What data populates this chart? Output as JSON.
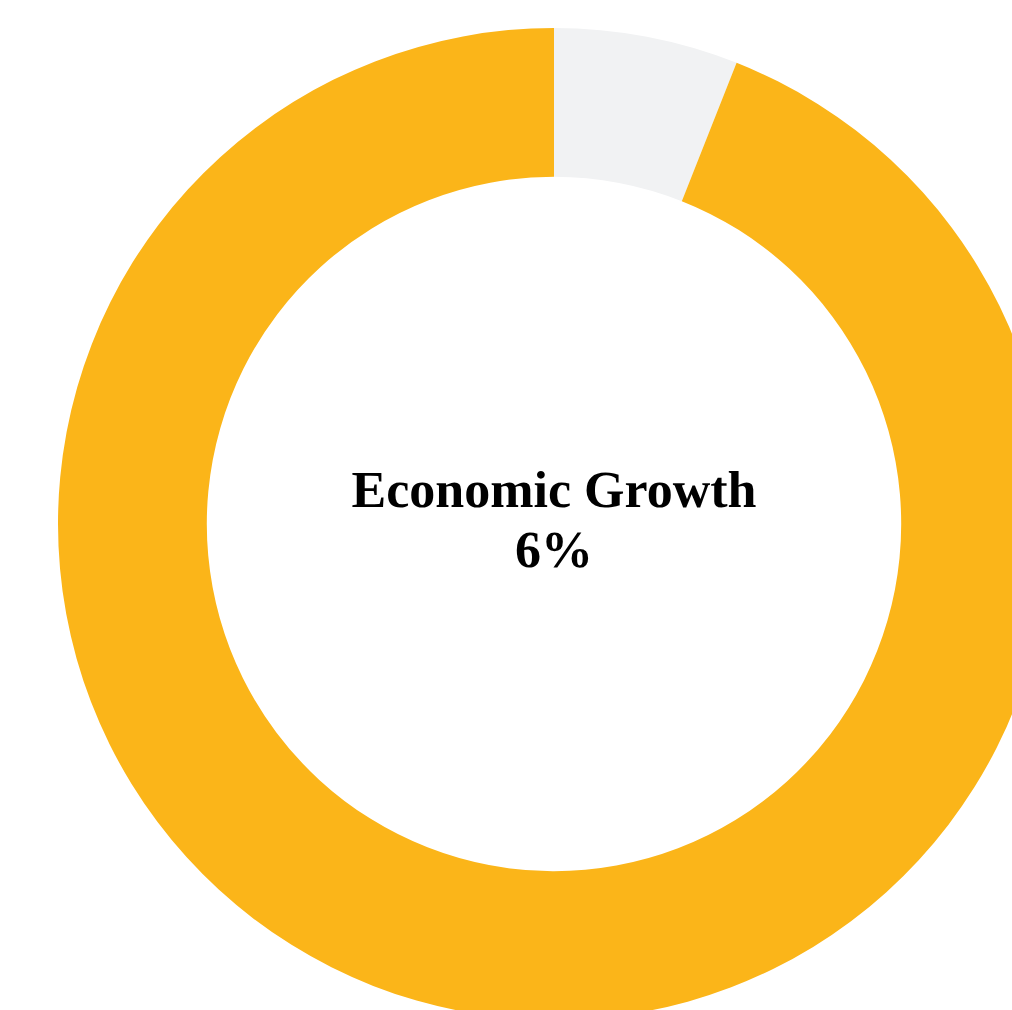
{
  "chart_data": {
    "type": "donut",
    "categories": [
      null,
      null
    ],
    "values": [
      6,
      94
    ],
    "colors": [
      "#f1f2f3",
      "#fbb519"
    ],
    "annotations": [
      "Economic Growth",
      "6%"
    ]
  }
}
